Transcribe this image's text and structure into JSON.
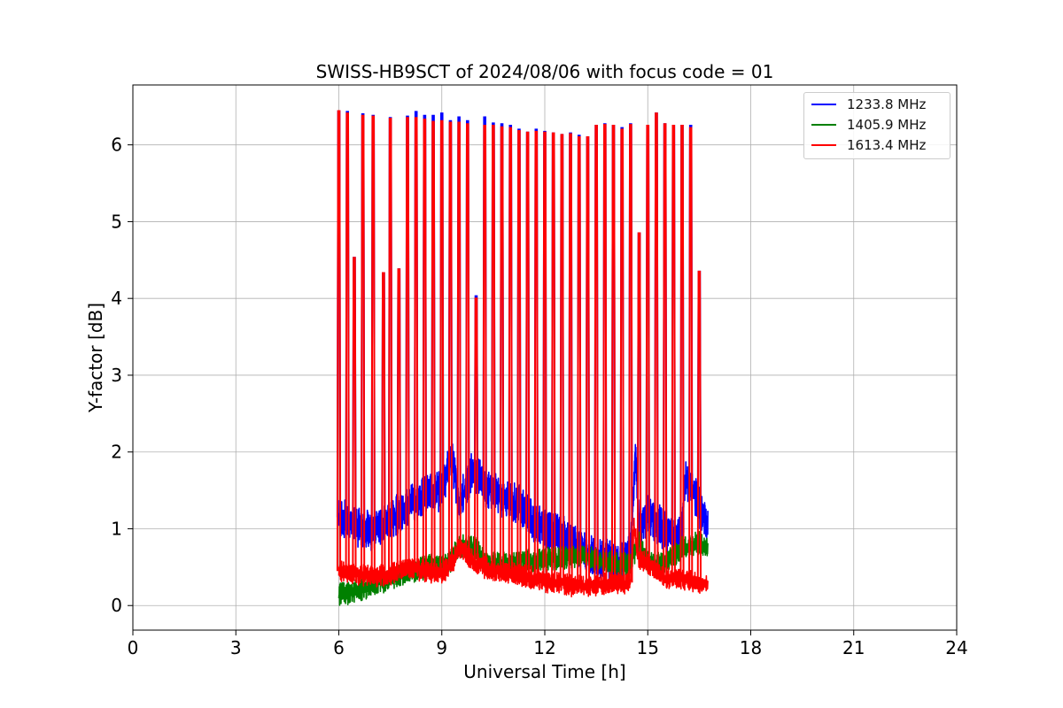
{
  "chart_data": {
    "type": "line",
    "title": "SWISS-HB9SCT of 2024/08/06 with focus code = 01",
    "xlabel": "Universal Time [h]",
    "ylabel": "Y-factor [dB]",
    "xlim": [
      0,
      24
    ],
    "ylim": [
      -0.32,
      6.78
    ],
    "xticks": [
      0,
      3,
      6,
      9,
      12,
      15,
      18,
      21,
      24
    ],
    "yticks": [
      0,
      1,
      2,
      3,
      4,
      5,
      6
    ],
    "grid": true,
    "legend_position": "top-right",
    "data_range_hours": [
      6.0,
      16.75
    ],
    "series": [
      {
        "name": "1233.8 MHz",
        "color": "#0000ff",
        "baseline": [
          [
            6.0,
            1.15
          ],
          [
            6.5,
            1.05
          ],
          [
            7.0,
            0.95
          ],
          [
            7.5,
            1.1
          ],
          [
            8.0,
            1.3
          ],
          [
            8.5,
            1.45
          ],
          [
            9.0,
            1.5
          ],
          [
            9.3,
            1.95
          ],
          [
            9.5,
            1.3
          ],
          [
            9.9,
            1.8
          ],
          [
            10.3,
            1.5
          ],
          [
            10.8,
            1.4
          ],
          [
            11.3,
            1.3
          ],
          [
            11.8,
            1.05
          ],
          [
            12.3,
            0.95
          ],
          [
            12.7,
            0.85
          ],
          [
            13.3,
            0.65
          ],
          [
            13.8,
            0.6
          ],
          [
            14.2,
            0.55
          ],
          [
            14.5,
            0.7
          ],
          [
            14.65,
            2.05
          ],
          [
            14.75,
            1.0
          ],
          [
            15.0,
            1.2
          ],
          [
            15.3,
            1.05
          ],
          [
            15.7,
            0.9
          ],
          [
            16.0,
            0.95
          ],
          [
            16.1,
            1.7
          ],
          [
            16.5,
            1.3
          ],
          [
            16.75,
            1.0
          ]
        ],
        "noise": 0.28,
        "spikes": [
          [
            6.0,
            6.44
          ],
          [
            6.25,
            6.43
          ],
          [
            6.45,
            4.53
          ],
          [
            6.7,
            6.4
          ],
          [
            7.0,
            6.38
          ],
          [
            7.3,
            4.33
          ],
          [
            7.5,
            6.35
          ],
          [
            7.75,
            4.38
          ],
          [
            8.0,
            6.37
          ],
          [
            8.25,
            6.43
          ],
          [
            8.5,
            6.38
          ],
          [
            8.75,
            6.38
          ],
          [
            9.0,
            6.41
          ],
          [
            9.25,
            6.31
          ],
          [
            9.5,
            6.36
          ],
          [
            9.75,
            6.31
          ],
          [
            10.0,
            4.03
          ],
          [
            10.25,
            6.36
          ],
          [
            10.5,
            6.28
          ],
          [
            10.75,
            6.27
          ],
          [
            11.0,
            6.25
          ],
          [
            11.25,
            6.2
          ],
          [
            11.5,
            6.16
          ],
          [
            11.75,
            6.2
          ],
          [
            12.0,
            6.17
          ],
          [
            12.25,
            6.15
          ],
          [
            12.5,
            6.13
          ],
          [
            12.75,
            6.15
          ],
          [
            13.0,
            6.12
          ],
          [
            13.25,
            6.1
          ],
          [
            13.5,
            6.25
          ],
          [
            13.75,
            6.27
          ],
          [
            14.0,
            6.25
          ],
          [
            14.25,
            6.22
          ],
          [
            14.5,
            6.27
          ],
          [
            14.75,
            4.85
          ],
          [
            15.0,
            6.25
          ],
          [
            15.25,
            6.41
          ],
          [
            15.5,
            6.27
          ],
          [
            15.75,
            6.25
          ],
          [
            16.0,
            6.25
          ],
          [
            16.25,
            6.25
          ],
          [
            16.5,
            4.35
          ]
        ]
      },
      {
        "name": "1405.9 MHz",
        "color": "#008000",
        "baseline": [
          [
            6.0,
            0.15
          ],
          [
            6.5,
            0.18
          ],
          [
            7.0,
            0.25
          ],
          [
            7.5,
            0.35
          ],
          [
            8.0,
            0.42
          ],
          [
            8.5,
            0.5
          ],
          [
            9.0,
            0.55
          ],
          [
            9.3,
            0.6
          ],
          [
            9.5,
            0.78
          ],
          [
            10.0,
            0.75
          ],
          [
            10.3,
            0.55
          ],
          [
            11.0,
            0.55
          ],
          [
            11.5,
            0.58
          ],
          [
            12.0,
            0.6
          ],
          [
            12.5,
            0.62
          ],
          [
            13.0,
            0.65
          ],
          [
            13.5,
            0.6
          ],
          [
            14.0,
            0.55
          ],
          [
            14.5,
            0.55
          ],
          [
            14.75,
            0.85
          ],
          [
            15.0,
            0.55
          ],
          [
            15.5,
            0.55
          ],
          [
            16.0,
            0.75
          ],
          [
            16.5,
            0.82
          ],
          [
            16.75,
            0.75
          ]
        ],
        "noise": 0.16,
        "spikes": []
      },
      {
        "name": "1613.4 MHz",
        "color": "#ff0000",
        "baseline": [
          [
            6.0,
            0.45
          ],
          [
            6.5,
            0.4
          ],
          [
            7.0,
            0.38
          ],
          [
            7.5,
            0.4
          ],
          [
            8.0,
            0.5
          ],
          [
            8.5,
            0.45
          ],
          [
            9.0,
            0.42
          ],
          [
            9.3,
            0.55
          ],
          [
            9.5,
            0.75
          ],
          [
            10.0,
            0.55
          ],
          [
            10.5,
            0.45
          ],
          [
            11.0,
            0.42
          ],
          [
            11.5,
            0.38
          ],
          [
            12.0,
            0.32
          ],
          [
            12.5,
            0.28
          ],
          [
            13.0,
            0.25
          ],
          [
            13.5,
            0.27
          ],
          [
            14.0,
            0.3
          ],
          [
            14.5,
            0.3
          ],
          [
            14.6,
            1.0
          ],
          [
            14.75,
            0.6
          ],
          [
            15.0,
            0.55
          ],
          [
            15.5,
            0.35
          ],
          [
            16.0,
            0.35
          ],
          [
            16.5,
            0.3
          ],
          [
            16.75,
            0.3
          ]
        ],
        "noise": 0.15,
        "spikes": [
          [
            6.0,
            6.44
          ],
          [
            6.25,
            6.41
          ],
          [
            6.45,
            4.53
          ],
          [
            6.7,
            6.38
          ],
          [
            7.0,
            6.37
          ],
          [
            7.3,
            4.33
          ],
          [
            7.5,
            6.34
          ],
          [
            7.75,
            4.38
          ],
          [
            8.0,
            6.35
          ],
          [
            8.25,
            6.35
          ],
          [
            8.5,
            6.33
          ],
          [
            8.75,
            6.3
          ],
          [
            9.0,
            6.31
          ],
          [
            9.25,
            6.29
          ],
          [
            9.5,
            6.29
          ],
          [
            9.75,
            6.27
          ],
          [
            10.0,
            4.0
          ],
          [
            10.25,
            6.25
          ],
          [
            10.5,
            6.25
          ],
          [
            10.75,
            6.23
          ],
          [
            11.0,
            6.22
          ],
          [
            11.25,
            6.18
          ],
          [
            11.5,
            6.16
          ],
          [
            11.75,
            6.17
          ],
          [
            12.0,
            6.16
          ],
          [
            12.25,
            6.15
          ],
          [
            12.5,
            6.13
          ],
          [
            12.75,
            6.14
          ],
          [
            13.0,
            6.1
          ],
          [
            13.25,
            6.1
          ],
          [
            13.5,
            6.25
          ],
          [
            13.75,
            6.26
          ],
          [
            14.0,
            6.25
          ],
          [
            14.25,
            6.2
          ],
          [
            14.5,
            6.26
          ],
          [
            14.75,
            4.85
          ],
          [
            15.0,
            6.25
          ],
          [
            15.25,
            6.41
          ],
          [
            15.5,
            6.27
          ],
          [
            15.75,
            6.25
          ],
          [
            16.0,
            6.25
          ],
          [
            16.25,
            6.22
          ],
          [
            16.5,
            4.35
          ]
        ]
      }
    ]
  }
}
